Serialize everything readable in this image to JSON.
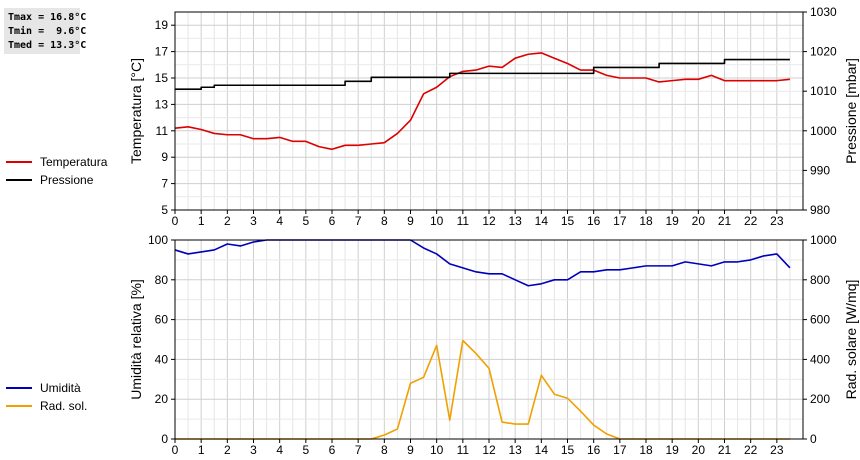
{
  "stats": {
    "tmax": "Tmax = 16.8°C",
    "tmin": "Tmin =  9.6°C",
    "tmed": "Tmed = 13.3°C"
  },
  "legend_top": [
    {
      "label": "Temperatura",
      "color": "#dd0000"
    },
    {
      "label": "Pressione",
      "color": "#000000"
    }
  ],
  "legend_bottom": [
    {
      "label": "Umidità",
      "color": "#0000bb"
    },
    {
      "label": "Rad. sol.",
      "color": "#f0a000"
    }
  ],
  "chart_data": [
    {
      "type": "line",
      "ylabel": "Temperatura [°C]",
      "y2label": "Pressione [mbar]",
      "xlim": [
        0,
        24
      ],
      "ylim": [
        5,
        20
      ],
      "y2lim": [
        980,
        1030
      ],
      "x_ticks": [
        0,
        1,
        2,
        3,
        4,
        5,
        6,
        7,
        8,
        9,
        10,
        11,
        12,
        13,
        14,
        15,
        16,
        17,
        18,
        19,
        20,
        21,
        22,
        23
      ],
      "y_ticks": [
        5,
        7,
        9,
        11,
        13,
        15,
        17,
        19
      ],
      "y2_ticks": [
        980,
        990,
        1000,
        1010,
        1020,
        1030
      ],
      "grid": true,
      "series": [
        {
          "name": "Temperatura",
          "color": "#dd0000",
          "axis": "left",
          "x": [
            0,
            0.5,
            1,
            1.5,
            2,
            2.5,
            3,
            3.5,
            4,
            4.5,
            5,
            5.5,
            6,
            6.5,
            7,
            7.5,
            8,
            8.5,
            9,
            9.5,
            10,
            10.5,
            11,
            11.5,
            12,
            12.5,
            13,
            13.5,
            14,
            14.5,
            15,
            15.5,
            16,
            16.5,
            17,
            17.5,
            18,
            18.5,
            19,
            19.5,
            20,
            20.5,
            21,
            21.5,
            22,
            22.5,
            23,
            23.5
          ],
          "y": [
            11.2,
            11.3,
            11.1,
            10.8,
            10.7,
            10.7,
            10.4,
            10.4,
            10.5,
            10.2,
            10.2,
            9.8,
            9.6,
            9.9,
            9.9,
            10.0,
            10.1,
            10.8,
            11.8,
            13.8,
            14.3,
            15.1,
            15.5,
            15.6,
            15.9,
            15.8,
            16.5,
            16.8,
            16.9,
            16.5,
            16.1,
            15.6,
            15.6,
            15.2,
            15.0,
            15.0,
            15.0,
            14.7,
            14.8,
            14.9,
            14.9,
            15.2,
            14.8,
            14.8,
            14.8,
            14.8,
            14.8,
            14.9
          ]
        },
        {
          "name": "Pressione",
          "color": "#000000",
          "axis": "right",
          "step": true,
          "x": [
            0,
            1,
            1.5,
            2.5,
            3.5,
            6.5,
            7.5,
            10.5,
            16,
            18.5,
            21,
            23.5
          ],
          "y": [
            1010.5,
            1011,
            1011.5,
            1011.5,
            1011.5,
            1012.5,
            1013.5,
            1014.5,
            1016,
            1017,
            1018,
            1018
          ]
        }
      ]
    },
    {
      "type": "line",
      "ylabel": "Umidità relativa [%]",
      "y2label": "Rad. solare [W/mq]",
      "xlim": [
        0,
        24
      ],
      "ylim": [
        0,
        100
      ],
      "y2lim": [
        0,
        1000
      ],
      "x_ticks": [
        0,
        1,
        2,
        3,
        4,
        5,
        6,
        7,
        8,
        9,
        10,
        11,
        12,
        13,
        14,
        15,
        16,
        17,
        18,
        19,
        20,
        21,
        22,
        23
      ],
      "y_ticks": [
        0,
        20,
        40,
        60,
        80,
        100
      ],
      "y2_ticks": [
        0,
        200,
        400,
        600,
        800,
        1000
      ],
      "grid": true,
      "series": [
        {
          "name": "Umidità",
          "color": "#0000bb",
          "axis": "left",
          "x": [
            0,
            0.5,
            1,
            1.5,
            2,
            2.5,
            3,
            3.5,
            4,
            4.5,
            5,
            5.5,
            6,
            6.5,
            7,
            7.5,
            8,
            8.5,
            9,
            9.5,
            10,
            10.5,
            11,
            11.5,
            12,
            12.5,
            13,
            13.5,
            14,
            14.5,
            15,
            15.5,
            16,
            16.5,
            17,
            17.5,
            18,
            18.5,
            19,
            19.5,
            20,
            20.5,
            21,
            21.5,
            22,
            22.5,
            23,
            23.5
          ],
          "y": [
            95,
            93,
            94,
            95,
            98,
            97,
            99,
            100,
            100,
            100,
            100,
            100,
            100,
            100,
            100,
            100,
            100,
            100,
            100,
            96,
            93,
            88,
            86,
            84,
            83,
            83,
            80,
            77,
            78,
            80,
            80,
            84,
            84,
            85,
            85,
            86,
            87,
            87,
            87,
            89,
            88,
            87,
            89,
            89,
            90,
            92,
            93,
            86
          ]
        },
        {
          "name": "Rad. sol.",
          "color": "#f0a000",
          "axis": "right",
          "x": [
            0,
            0.5,
            1,
            1.5,
            2,
            2.5,
            3,
            3.5,
            4,
            4.5,
            5,
            5.5,
            6,
            6.5,
            7,
            7.5,
            8,
            8.5,
            9,
            9.5,
            10,
            10.5,
            11,
            11.5,
            12,
            12.5,
            13,
            13.5,
            14,
            14.5,
            15,
            15.5,
            16,
            16.5,
            17,
            17.5,
            18,
            18.5,
            19,
            19.5,
            20,
            20.5,
            21,
            21.5,
            22,
            22.5,
            23,
            23.5
          ],
          "y": [
            0,
            0,
            0,
            0,
            0,
            0,
            0,
            0,
            0,
            0,
            0,
            0,
            0,
            0,
            0,
            0,
            20,
            50,
            280,
            310,
            470,
            95,
            495,
            430,
            355,
            85,
            75,
            75,
            320,
            225,
            205,
            140,
            70,
            25,
            0,
            0,
            0,
            0,
            0,
            0,
            0,
            0,
            0,
            0,
            0,
            0,
            0,
            0
          ]
        }
      ]
    }
  ]
}
